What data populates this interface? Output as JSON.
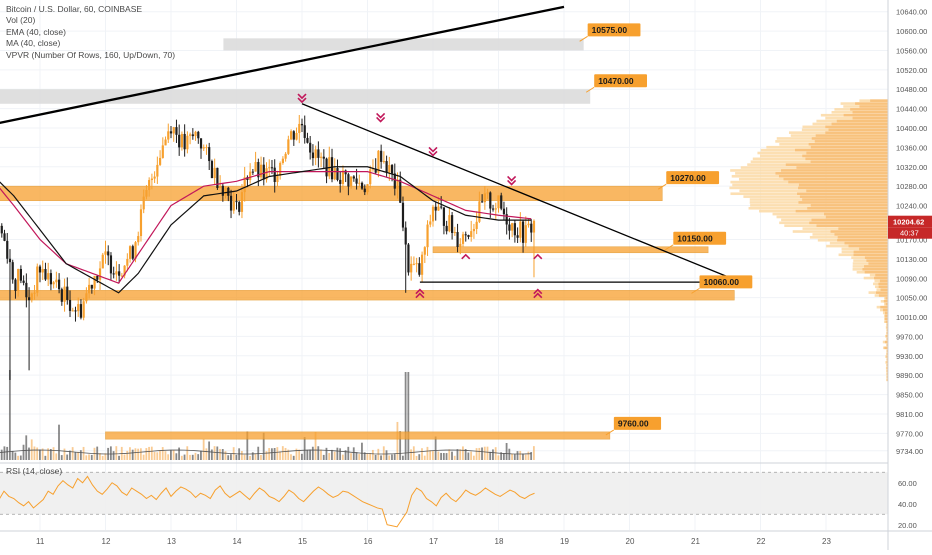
{
  "chart_data": {
    "type": "candlestick",
    "symbol": "Bitcoin / U.S. Dollar, 60, COINBASE",
    "indicators": [
      "Vol (20)",
      "EMA (40, close)",
      "MA (40, close)",
      "VPVR (Number Of Rows, 160, Up/Down, 70)"
    ],
    "x_tick_labels": [
      "11",
      "12",
      "13",
      "14",
      "15",
      "16",
      "17",
      "18",
      "19",
      "20",
      "21",
      "22",
      "23"
    ],
    "y_tick_labels": [
      "10640.00",
      "10600.00",
      "10560.00",
      "10520.00",
      "10480.00",
      "10440.00",
      "10400.00",
      "10360.00",
      "10320.00",
      "10280.00",
      "10240.00",
      "10170.00",
      "10130.00",
      "10090.00",
      "10050.00",
      "10010.00",
      "9970.00",
      "9930.00",
      "9890.00",
      "9850.00",
      "9810.00",
      "9770.00",
      "9734.00"
    ],
    "ylim": [
      9715,
      10660
    ],
    "last_price_label": "10204.62",
    "countdown_label": "40:37",
    "ohlc_anchor_closes": [
      [
        10.0,
        10255
      ],
      [
        10.2,
        10230
      ],
      [
        10.4,
        10190
      ],
      [
        10.5,
        10150
      ],
      [
        10.6,
        10080
      ],
      [
        10.7,
        10100
      ],
      [
        10.8,
        10040
      ],
      [
        10.9,
        10070
      ],
      [
        11.0,
        10110
      ],
      [
        11.2,
        10080
      ],
      [
        11.4,
        10050
      ],
      [
        11.6,
        10020
      ],
      [
        11.8,
        10090
      ],
      [
        12.0,
        10130
      ],
      [
        12.2,
        10110
      ],
      [
        12.4,
        10140
      ],
      [
        12.6,
        10250
      ],
      [
        12.8,
        10340
      ],
      [
        13.0,
        10410
      ],
      [
        13.2,
        10360
      ],
      [
        13.4,
        10390
      ],
      [
        13.6,
        10320
      ],
      [
        13.8,
        10280
      ],
      [
        14.0,
        10230
      ],
      [
        14.2,
        10320
      ],
      [
        14.4,
        10300
      ],
      [
        14.6,
        10310
      ],
      [
        14.8,
        10380
      ],
      [
        15.0,
        10410
      ],
      [
        15.2,
        10340
      ],
      [
        15.4,
        10320
      ],
      [
        15.6,
        10300
      ],
      [
        15.8,
        10290
      ],
      [
        16.0,
        10280
      ],
      [
        16.2,
        10350
      ],
      [
        16.3,
        10320
      ],
      [
        16.5,
        10260
      ],
      [
        16.6,
        10120
      ],
      [
        16.8,
        10100
      ],
      [
        17.0,
        10240
      ],
      [
        17.2,
        10210
      ],
      [
        17.4,
        10170
      ],
      [
        17.6,
        10200
      ],
      [
        17.8,
        10250
      ],
      [
        18.0,
        10240
      ],
      [
        18.2,
        10200
      ],
      [
        18.4,
        10180
      ],
      [
        18.55,
        10205
      ]
    ],
    "ema_anchors": [
      [
        10.0,
        10330
      ],
      [
        10.3,
        10290
      ],
      [
        10.6,
        10240
      ],
      [
        11.0,
        10170
      ],
      [
        11.4,
        10120
      ],
      [
        11.8,
        10100
      ],
      [
        12.2,
        10080
      ],
      [
        12.6,
        10160
      ],
      [
        13.0,
        10240
      ],
      [
        13.5,
        10280
      ],
      [
        14.0,
        10290
      ],
      [
        14.5,
        10310
      ],
      [
        15.0,
        10310
      ],
      [
        15.5,
        10310
      ],
      [
        16.0,
        10310
      ],
      [
        16.5,
        10290
      ],
      [
        17.0,
        10260
      ],
      [
        17.5,
        10230
      ],
      [
        18.0,
        10220
      ],
      [
        18.55,
        10212
      ]
    ],
    "ma_anchors": [
      [
        10.0,
        10320
      ],
      [
        10.3,
        10300
      ],
      [
        10.6,
        10260
      ],
      [
        11.0,
        10190
      ],
      [
        11.4,
        10120
      ],
      [
        11.8,
        10090
      ],
      [
        12.2,
        10060
      ],
      [
        12.5,
        10100
      ],
      [
        13.0,
        10200
      ],
      [
        13.5,
        10260
      ],
      [
        14.0,
        10270
      ],
      [
        14.5,
        10300
      ],
      [
        15.0,
        10310
      ],
      [
        15.5,
        10320
      ],
      [
        16.0,
        10320
      ],
      [
        16.5,
        10300
      ],
      [
        17.0,
        10250
      ],
      [
        17.5,
        10220
      ],
      [
        18.0,
        10210
      ],
      [
        18.55,
        10210
      ]
    ],
    "horizontal_zones": [
      {
        "y_low": 10560,
        "y_high": 10585,
        "x_start": 13.8,
        "x_end": 19.3,
        "color": "#dcdcdc",
        "label": "10575.00"
      },
      {
        "y_low": 10450,
        "y_high": 10480,
        "x_start": 10.0,
        "x_end": 19.4,
        "color": "#dcdcdc",
        "label": "10470.00"
      },
      {
        "y_low": 10250,
        "y_high": 10280,
        "x_start": 10.0,
        "x_end": 20.5,
        "color": "#f7a02e",
        "label": "10270.00"
      },
      {
        "y_low": 10145,
        "y_high": 10155,
        "x_start": 17.0,
        "x_end": 21.2,
        "color": "#f7a02e",
        "label": "10150.00"
      },
      {
        "y_low": 10045,
        "y_high": 10065,
        "x_start": 10.0,
        "x_end": 21.6,
        "color": "#f7a02e",
        "label": "10060.00"
      },
      {
        "y_low": 9758,
        "y_high": 9773,
        "x_start": 12.0,
        "x_end": 19.7,
        "color": "#f7a02e",
        "label": "9760.00"
      }
    ],
    "trendlines": [
      {
        "x1": 10.0,
        "y1": 10400,
        "x2": 19.0,
        "y2": 10650,
        "color": "#000000",
        "width": 2.3
      },
      {
        "x1": 15.0,
        "y1": 10450,
        "x2": 21.7,
        "y2": 10082,
        "color": "#000000",
        "width": 1.3
      },
      {
        "x1": 16.8,
        "y1": 10082,
        "x2": 21.7,
        "y2": 10082,
        "color": "#000000",
        "width": 1.3
      }
    ],
    "markers_down": [
      [
        15.0,
        10470
      ],
      [
        16.2,
        10430
      ],
      [
        17.0,
        10360
      ],
      [
        18.2,
        10300
      ]
    ],
    "markers_up": [
      [
        17.5,
        10130
      ],
      [
        18.6,
        10130
      ],
      [
        16.8,
        10050
      ],
      [
        18.6,
        10050
      ]
    ],
    "rsi": {
      "label": "RSI (14, close)",
      "y_tick_labels": [
        "60.00",
        "40.00",
        "20.00"
      ],
      "ylim": [
        15,
        75
      ],
      "bands": [
        30,
        70
      ],
      "values": [
        55,
        48,
        40,
        46,
        35,
        44,
        52,
        47,
        45,
        41,
        38,
        42,
        36,
        40,
        44,
        52,
        49,
        57,
        62,
        58,
        55,
        64,
        60,
        66,
        58,
        52,
        49,
        54,
        60,
        57,
        51,
        48,
        55,
        52,
        49,
        45,
        48,
        44,
        50,
        55,
        47,
        52,
        56,
        54,
        51,
        46,
        50,
        48,
        45,
        53,
        57,
        50,
        46,
        49,
        52,
        48,
        44,
        50,
        55,
        52,
        47,
        45,
        42,
        47,
        53,
        50,
        45,
        42,
        47,
        52,
        56,
        53,
        49,
        46,
        48,
        52,
        51,
        48,
        45,
        42,
        40,
        38,
        36,
        35,
        20,
        19,
        18,
        25,
        32,
        48,
        55,
        52,
        45,
        42,
        38,
        46,
        50,
        45,
        42,
        47,
        53,
        50,
        48,
        51,
        55,
        52,
        49,
        47,
        50,
        53,
        51,
        47,
        45,
        48,
        50
      ]
    },
    "grid": true
  }
}
